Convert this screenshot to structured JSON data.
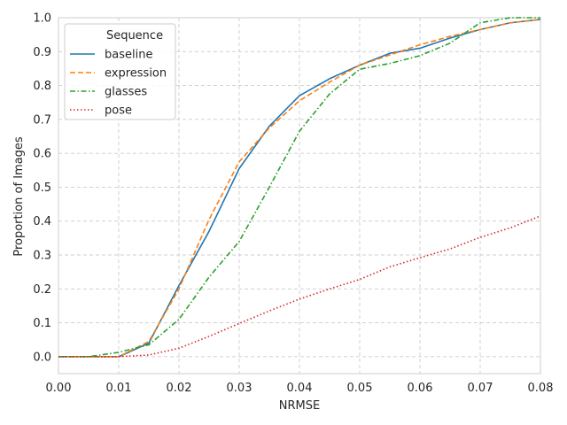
{
  "chart_data": {
    "type": "line",
    "title": "",
    "xlabel": "NRMSE",
    "ylabel": "Proportion of Images",
    "xlim": [
      0.0,
      0.08
    ],
    "ylim": [
      -0.05,
      1.0
    ],
    "xticks": [
      "0.00",
      "0.01",
      "0.02",
      "0.03",
      "0.04",
      "0.05",
      "0.06",
      "0.07",
      "0.08"
    ],
    "yticks": [
      "0.0",
      "0.1",
      "0.2",
      "0.3",
      "0.4",
      "0.5",
      "0.6",
      "0.7",
      "0.8",
      "0.9",
      "1.0"
    ],
    "grid": true,
    "legend": {
      "title": "Sequence",
      "placement": "top-left"
    },
    "x": [
      0.0,
      0.005,
      0.01,
      0.015,
      0.02,
      0.025,
      0.03,
      0.035,
      0.04,
      0.045,
      0.05,
      0.055,
      0.06,
      0.065,
      0.07,
      0.075,
      0.08
    ],
    "series": [
      {
        "name": "baseline",
        "color": "#1f77b4",
        "dash": "solid",
        "values": [
          0.0,
          0.0,
          0.0,
          0.04,
          0.21,
          0.37,
          0.555,
          0.68,
          0.77,
          0.82,
          0.86,
          0.895,
          0.91,
          0.94,
          0.965,
          0.985,
          0.995
        ]
      },
      {
        "name": "expression",
        "color": "#ff7f0e",
        "dash": "dashed",
        "values": [
          0.0,
          0.0,
          0.0,
          0.045,
          0.2,
          0.405,
          0.575,
          0.675,
          0.755,
          0.81,
          0.86,
          0.89,
          0.92,
          0.945,
          0.965,
          0.985,
          0.995
        ]
      },
      {
        "name": "glasses",
        "color": "#2ca02c",
        "dash": "dashdot",
        "values": [
          0.0,
          0.0,
          0.013,
          0.035,
          0.11,
          0.235,
          0.34,
          0.5,
          0.665,
          0.775,
          0.848,
          0.865,
          0.888,
          0.925,
          0.985,
          1.0,
          1.0
        ]
      },
      {
        "name": "pose",
        "color": "#d62728",
        "dash": "dotted",
        "values": [
          0.0,
          0.0,
          0.0,
          0.005,
          0.025,
          0.06,
          0.098,
          0.135,
          0.17,
          0.2,
          0.228,
          0.265,
          0.292,
          0.318,
          0.352,
          0.38,
          0.415
        ]
      }
    ]
  }
}
